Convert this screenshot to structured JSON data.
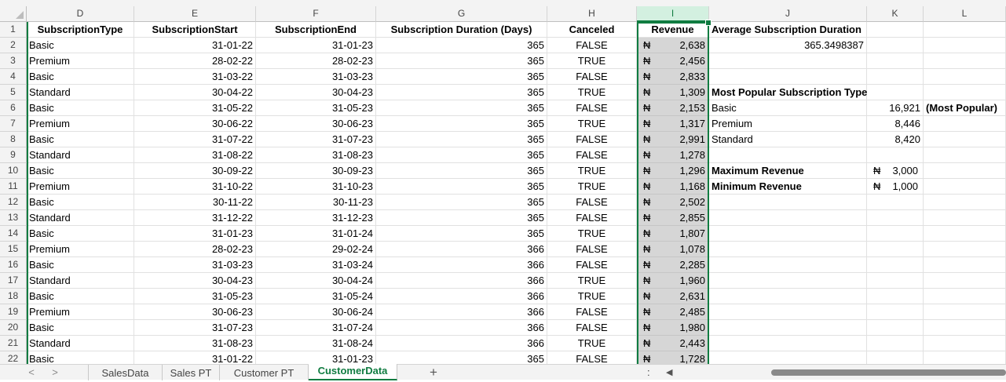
{
  "columns": [
    {
      "letter": "D",
      "left": 0,
      "width": 0
    },
    {
      "letter": "E"
    },
    {
      "letter": "F"
    },
    {
      "letter": "G"
    },
    {
      "letter": "H"
    },
    {
      "letter": "I"
    },
    {
      "letter": "J"
    },
    {
      "letter": "K"
    },
    {
      "letter": "L"
    }
  ],
  "headers": {
    "D": "SubscriptionType",
    "E": "SubscriptionStart",
    "F": "SubscriptionEnd",
    "G": "Subscription Duration (Days)",
    "H": "Canceled",
    "I": "Revenue",
    "J": "Average Subscription Duration"
  },
  "currency_symbol": "₦",
  "rows": [
    {
      "n": "2",
      "type": "Basic",
      "start": "31-01-22",
      "end": "31-01-23",
      "dur": "365",
      "canceled": "FALSE",
      "rev": "2,638"
    },
    {
      "n": "3",
      "type": "Premium",
      "start": "28-02-22",
      "end": "28-02-23",
      "dur": "365",
      "canceled": "TRUE",
      "rev": "2,456"
    },
    {
      "n": "4",
      "type": "Basic",
      "start": "31-03-22",
      "end": "31-03-23",
      "dur": "365",
      "canceled": "FALSE",
      "rev": "2,833"
    },
    {
      "n": "5",
      "type": "Standard",
      "start": "30-04-22",
      "end": "30-04-23",
      "dur": "365",
      "canceled": "TRUE",
      "rev": "1,309"
    },
    {
      "n": "6",
      "type": "Basic",
      "start": "31-05-22",
      "end": "31-05-23",
      "dur": "365",
      "canceled": "FALSE",
      "rev": "2,153"
    },
    {
      "n": "7",
      "type": "Premium",
      "start": "30-06-22",
      "end": "30-06-23",
      "dur": "365",
      "canceled": "TRUE",
      "rev": "1,317"
    },
    {
      "n": "8",
      "type": "Basic",
      "start": "31-07-22",
      "end": "31-07-23",
      "dur": "365",
      "canceled": "FALSE",
      "rev": "2,991"
    },
    {
      "n": "9",
      "type": "Standard",
      "start": "31-08-22",
      "end": "31-08-23",
      "dur": "365",
      "canceled": "FALSE",
      "rev": "1,278"
    },
    {
      "n": "10",
      "type": "Basic",
      "start": "30-09-22",
      "end": "30-09-23",
      "dur": "365",
      "canceled": "TRUE",
      "rev": "1,296"
    },
    {
      "n": "11",
      "type": "Premium",
      "start": "31-10-22",
      "end": "31-10-23",
      "dur": "365",
      "canceled": "TRUE",
      "rev": "1,168"
    },
    {
      "n": "12",
      "type": "Basic",
      "start": "30-11-22",
      "end": "30-11-23",
      "dur": "365",
      "canceled": "FALSE",
      "rev": "2,502"
    },
    {
      "n": "13",
      "type": "Standard",
      "start": "31-12-22",
      "end": "31-12-23",
      "dur": "365",
      "canceled": "FALSE",
      "rev": "2,855"
    },
    {
      "n": "14",
      "type": "Basic",
      "start": "31-01-23",
      "end": "31-01-24",
      "dur": "365",
      "canceled": "TRUE",
      "rev": "1,807"
    },
    {
      "n": "15",
      "type": "Premium",
      "start": "28-02-23",
      "end": "29-02-24",
      "dur": "366",
      "canceled": "FALSE",
      "rev": "1,078"
    },
    {
      "n": "16",
      "type": "Basic",
      "start": "31-03-23",
      "end": "31-03-24",
      "dur": "366",
      "canceled": "FALSE",
      "rev": "2,285"
    },
    {
      "n": "17",
      "type": "Standard",
      "start": "30-04-23",
      "end": "30-04-24",
      "dur": "366",
      "canceled": "TRUE",
      "rev": "1,960"
    },
    {
      "n": "18",
      "type": "Basic",
      "start": "31-05-23",
      "end": "31-05-24",
      "dur": "366",
      "canceled": "TRUE",
      "rev": "2,631"
    },
    {
      "n": "19",
      "type": "Premium",
      "start": "30-06-23",
      "end": "30-06-24",
      "dur": "366",
      "canceled": "FALSE",
      "rev": "2,485"
    },
    {
      "n": "20",
      "type": "Basic",
      "start": "31-07-23",
      "end": "31-07-24",
      "dur": "366",
      "canceled": "FALSE",
      "rev": "1,980"
    },
    {
      "n": "21",
      "type": "Standard",
      "start": "31-08-23",
      "end": "31-08-24",
      "dur": "366",
      "canceled": "TRUE",
      "rev": "2,443"
    },
    {
      "n": "22",
      "type": "Basic",
      "start": "31-01-22",
      "end": "31-01-23",
      "dur": "365",
      "canceled": "FALSE",
      "rev": "1,728"
    }
  ],
  "summary": {
    "avg_duration_value": "365.3498387",
    "popular_title": "Most Popular Subscription Type",
    "popular": [
      {
        "type": "Basic",
        "count": "16,921",
        "note": "(Most Popular)"
      },
      {
        "type": "Premium",
        "count": "8,446",
        "note": ""
      },
      {
        "type": "Standard",
        "count": "8,420",
        "note": ""
      }
    ],
    "max_label": "Maximum Revenue",
    "max_value": "3,000",
    "min_label": "Minimum Revenue",
    "min_value": "1,000"
  },
  "sheet_tabs": [
    "SalesData",
    "Sales PT",
    "Customer PT",
    "CustomerData"
  ],
  "active_tab": "CustomerData",
  "add_sheet_label": "+",
  "more_label": ":",
  "nav_prev": "<",
  "nav_next": ">",
  "scroll_left": "◀",
  "accent_color": "#107c41"
}
